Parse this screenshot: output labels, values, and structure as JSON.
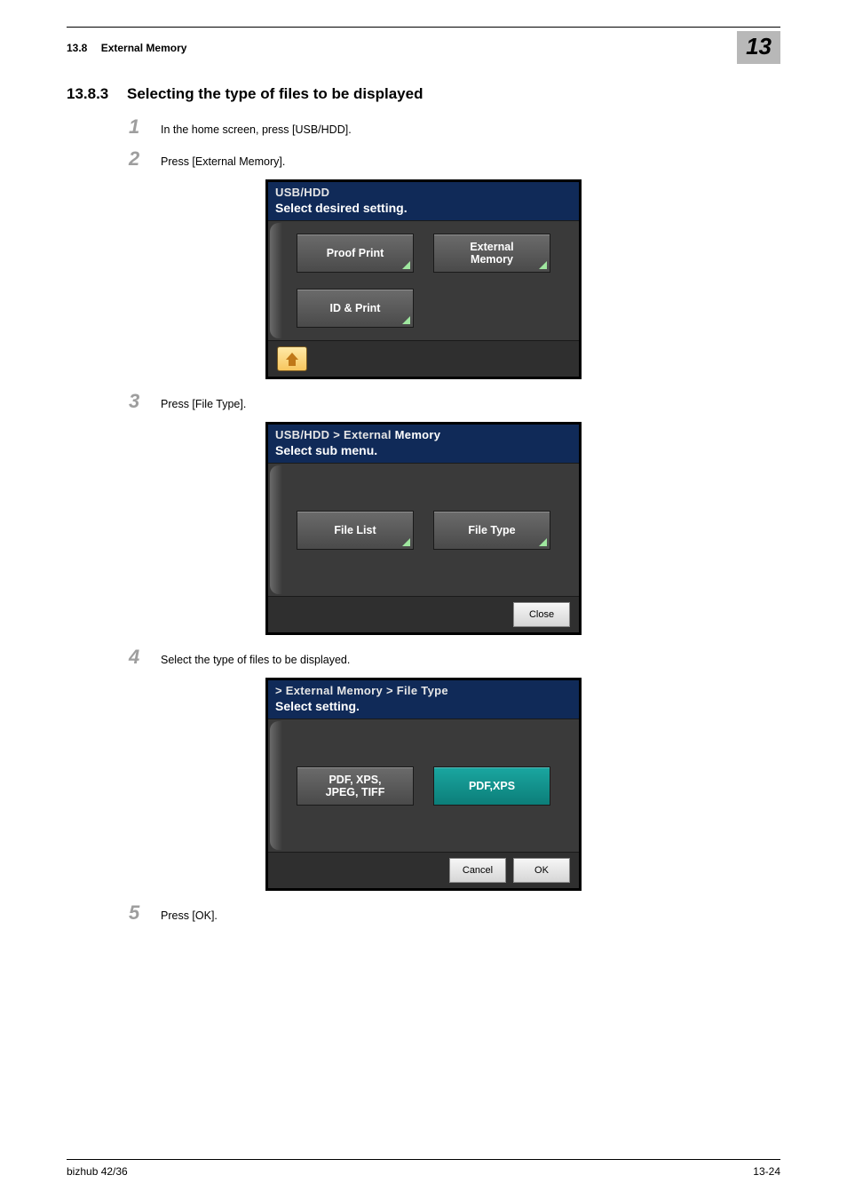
{
  "header": {
    "section_number": "13.8",
    "section_title": "External Memory",
    "chapter": "13"
  },
  "heading": {
    "number": "13.8.3",
    "title": "Selecting the type of files to be displayed"
  },
  "steps": {
    "s1": {
      "num": "1",
      "text": "In the home screen, press [USB/HDD]."
    },
    "s2": {
      "num": "2",
      "text": "Press [External Memory]."
    },
    "s3": {
      "num": "3",
      "text": "Press [File Type]."
    },
    "s4": {
      "num": "4",
      "text": "Select the type of files to be displayed."
    },
    "s5": {
      "num": "5",
      "text": "Press [OK]."
    }
  },
  "panel1": {
    "breadcrumb": "USB/HDD",
    "subtitle": "Select desired setting.",
    "btn_proof": "Proof Print",
    "btn_external": "External\nMemory",
    "btn_idprint": "ID & Print"
  },
  "panel2": {
    "bc_prefix": "USB/HDD > External ",
    "bc_accent": "Memory",
    "subtitle": "Select sub menu.",
    "btn_filelist": "File List",
    "btn_filetype": "File Type",
    "close": "Close"
  },
  "panel3": {
    "bc": "> External Memory > File Type",
    "subtitle": "Select setting.",
    "btn_all": "PDF, XPS,\nJPEG, TIFF",
    "btn_pdfxps": "PDF,XPS",
    "cancel": "Cancel",
    "ok": "OK"
  },
  "footer": {
    "left": "bizhub 42/36",
    "right": "13-24"
  },
  "colors": {
    "panel_header": "#102a58",
    "panel_body": "#3a3a3a",
    "selected_btn": "#1aa6a0",
    "chapter_badge": "#b8b8b8"
  }
}
